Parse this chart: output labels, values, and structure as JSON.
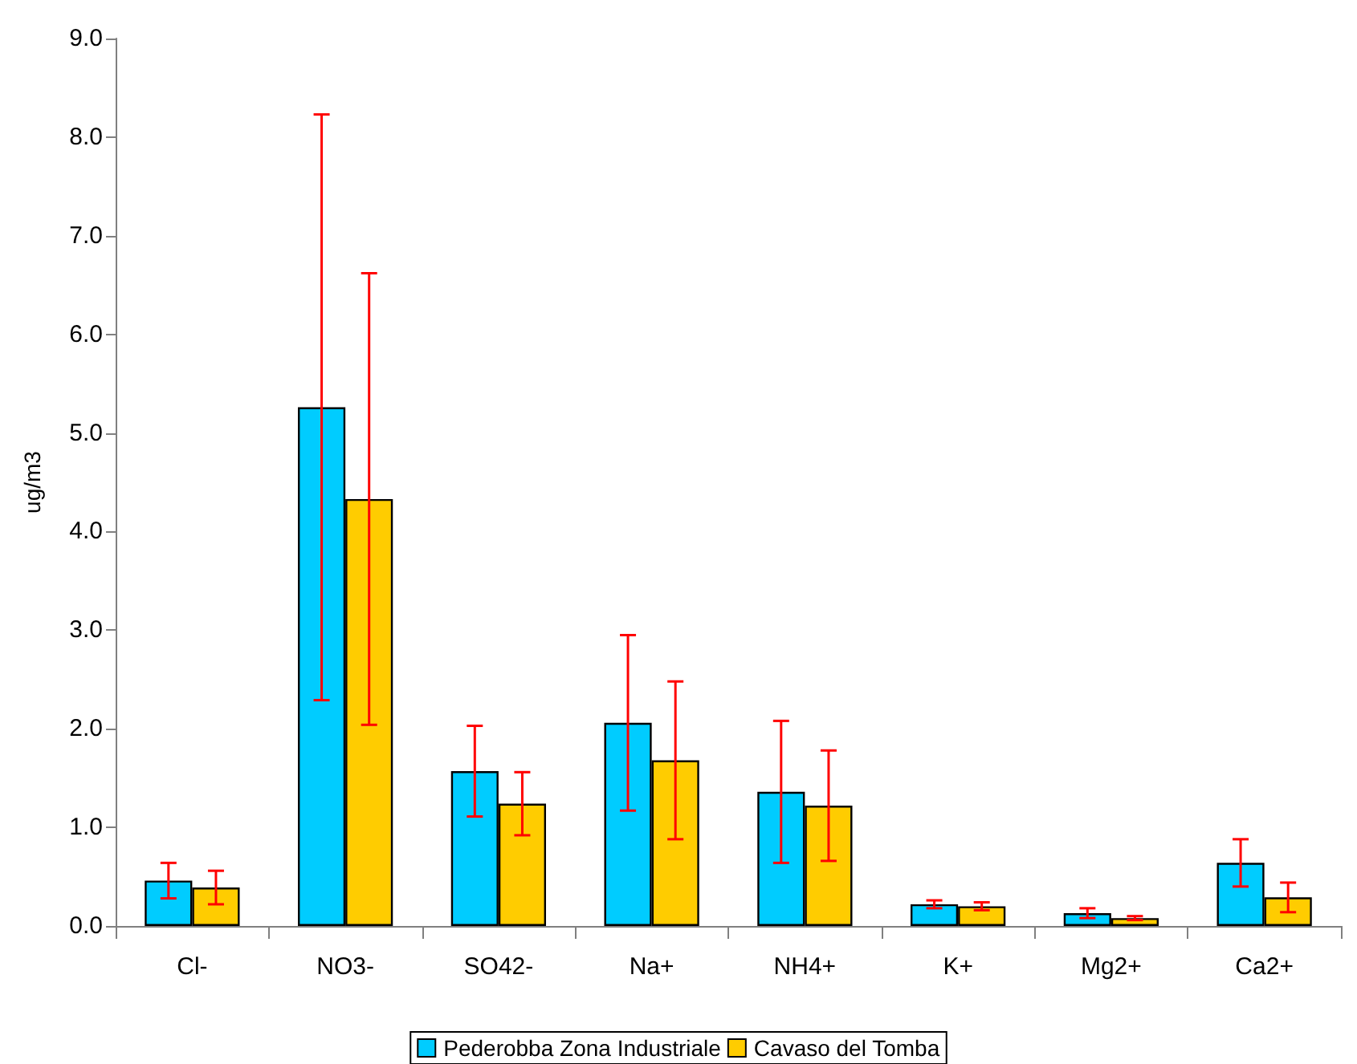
{
  "chart_data": {
    "type": "bar",
    "ylabel": "ug/m3",
    "categories": [
      "Cl-",
      "NO3-",
      "SO42-",
      "Na+",
      "NH4+",
      "K+",
      "Mg2+",
      "Ca2+"
    ],
    "series": [
      {
        "name": "Pederobba Zona Industriale",
        "color": "#00ccff",
        "values": [
          0.46,
          5.26,
          1.57,
          2.06,
          1.36,
          0.22,
          0.13,
          0.64
        ],
        "errors": [
          0.18,
          2.97,
          0.46,
          0.89,
          0.72,
          0.04,
          0.05,
          0.24
        ]
      },
      {
        "name": "Cavaso del Tomba",
        "color": "#ffcc00",
        "values": [
          0.39,
          4.33,
          1.24,
          1.68,
          1.22,
          0.2,
          0.08,
          0.29
        ],
        "errors": [
          0.17,
          2.29,
          0.32,
          0.8,
          0.56,
          0.04,
          0.02,
          0.15
        ]
      }
    ],
    "ylim": [
      0,
      9
    ],
    "yticks": [
      {
        "value": 0,
        "label": "0.0"
      },
      {
        "value": 1,
        "label": "1.0"
      },
      {
        "value": 2,
        "label": "2.0"
      },
      {
        "value": 3,
        "label": "3.0"
      },
      {
        "value": 4,
        "label": "4.0"
      },
      {
        "value": 5,
        "label": "5.0"
      },
      {
        "value": 6,
        "label": "6.0"
      },
      {
        "value": 7,
        "label": "7.0"
      },
      {
        "value": 8,
        "label": "8.0"
      },
      {
        "value": 9,
        "label": "9.0"
      }
    ],
    "grid": false,
    "legend": "bottom"
  }
}
